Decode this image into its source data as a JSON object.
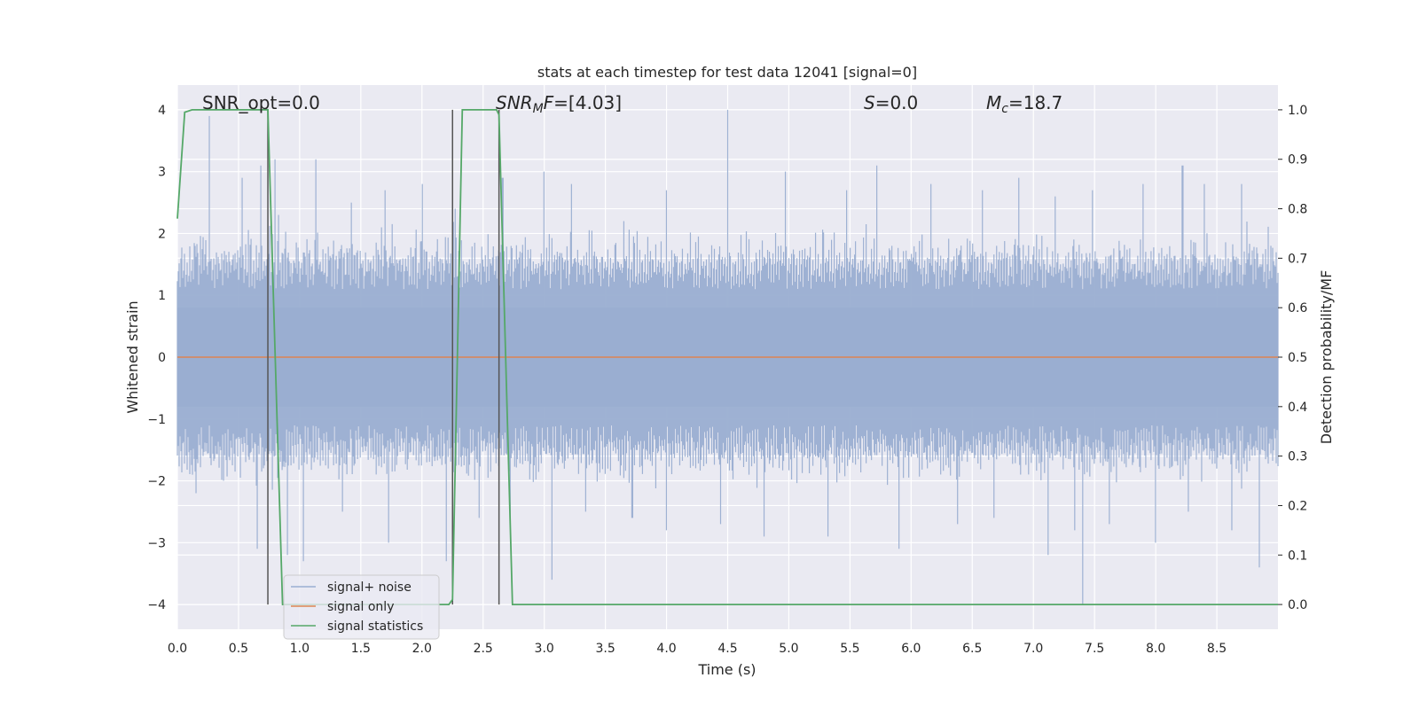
{
  "chart_data": {
    "type": "line",
    "title": "stats at each timestep for test data 12041 [signal=0]",
    "xlabel": "Time (s)",
    "ylabel_left": "Whitened strain",
    "ylabel_right": "Detection probability/MF",
    "xlim": [
      0.0,
      9.0
    ],
    "ylim_left": [
      -4.4,
      4.4
    ],
    "ylim_right": [
      -0.05,
      1.05
    ],
    "grid": true,
    "legend_position": "lower-left",
    "xticks": [
      "0.0",
      "0.5",
      "1.0",
      "1.5",
      "2.0",
      "2.5",
      "3.0",
      "3.5",
      "4.0",
      "4.5",
      "5.0",
      "5.5",
      "6.0",
      "6.5",
      "7.0",
      "7.5",
      "8.0",
      "8.5"
    ],
    "yticks_left": [
      "−4",
      "−3",
      "−2",
      "−1",
      "0",
      "1",
      "2",
      "3",
      "4"
    ],
    "yticks_right": [
      "0.0",
      "0.1",
      "0.2",
      "0.3",
      "0.4",
      "0.5",
      "0.6",
      "0.7",
      "0.8",
      "0.9",
      "1.0"
    ],
    "annotations": {
      "snr_opt": "SNR_opt=0.0",
      "snr_mf_sym": "SNR",
      "snr_mf_sub": "M",
      "snr_mf_sym2": "F",
      "snr_mf_val": "=[4.03]",
      "s_sym": "S",
      "s_val": "=0.0",
      "mc_sym": "M",
      "mc_sub": "c",
      "mc_val": "=18.7"
    },
    "vlines": [
      0.74,
      2.25,
      2.63
    ],
    "vline_ylim": [
      -4.0,
      4.0
    ],
    "series": [
      {
        "name": "signal+ noise",
        "color": "#9aaed1",
        "axis": "left",
        "sample_rate_hz": 4096,
        "envelope_levels": [
          1.1,
          1.3,
          1.5
        ],
        "spikes": [
          [
            0.26,
            3.9
          ],
          [
            0.53,
            2.9
          ],
          [
            0.68,
            3.1
          ],
          [
            0.8,
            3.2
          ],
          [
            0.83,
            2.3
          ],
          [
            1.13,
            3.2
          ],
          [
            1.42,
            2.5
          ],
          [
            1.7,
            2.7
          ],
          [
            2.0,
            2.8
          ],
          [
            2.27,
            2.4
          ],
          [
            2.66,
            2.9
          ],
          [
            3.0,
            3.0
          ],
          [
            3.22,
            2.8
          ],
          [
            3.65,
            2.2
          ],
          [
            4.0,
            2.7
          ],
          [
            4.5,
            4.0
          ],
          [
            4.97,
            3.0
          ],
          [
            5.47,
            2.7
          ],
          [
            5.72,
            3.1
          ],
          [
            6.16,
            2.8
          ],
          [
            6.58,
            2.7
          ],
          [
            6.88,
            2.9
          ],
          [
            7.18,
            2.6
          ],
          [
            7.48,
            2.7
          ],
          [
            7.9,
            2.8
          ],
          [
            8.22,
            3.1
          ],
          [
            8.4,
            2.8
          ],
          [
            8.7,
            2.8
          ],
          [
            8.94,
            1.8
          ]
        ],
        "neg_spikes": [
          [
            0.15,
            -2.2
          ],
          [
            0.38,
            -2.0
          ],
          [
            0.65,
            -3.1
          ],
          [
            0.9,
            -3.2
          ],
          [
            1.03,
            -3.3
          ],
          [
            1.35,
            -2.5
          ],
          [
            1.73,
            -3.0
          ],
          [
            2.2,
            -3.3
          ],
          [
            2.47,
            -2.6
          ],
          [
            2.72,
            -2.6
          ],
          [
            3.06,
            -3.6
          ],
          [
            3.34,
            -2.5
          ],
          [
            3.72,
            -2.6
          ],
          [
            4.0,
            -2.8
          ],
          [
            4.44,
            -2.7
          ],
          [
            4.8,
            -2.9
          ],
          [
            5.32,
            -2.9
          ],
          [
            5.9,
            -3.1
          ],
          [
            6.38,
            -2.7
          ],
          [
            6.68,
            -2.6
          ],
          [
            7.12,
            -3.2
          ],
          [
            7.34,
            -2.8
          ],
          [
            7.4,
            -4.0
          ],
          [
            7.62,
            -2.7
          ],
          [
            8.0,
            -3.0
          ],
          [
            8.27,
            -2.5
          ],
          [
            8.62,
            -2.8
          ],
          [
            8.85,
            -3.4
          ]
        ]
      },
      {
        "name": "signal only",
        "color": "#dd8452",
        "axis": "left",
        "x": [
          0.0,
          9.0
        ],
        "y": [
          0.0,
          0.0
        ]
      },
      {
        "name": "signal statistics",
        "color": "#55a868",
        "axis": "right",
        "x": [
          0.0,
          0.06,
          0.12,
          0.73,
          0.74,
          0.86,
          2.13,
          2.22,
          2.25,
          2.33,
          2.61,
          2.63,
          2.74,
          2.8,
          9.0
        ],
        "y": [
          0.78,
          0.995,
          1.0,
          1.0,
          1.0,
          0.0,
          0.0,
          0.0,
          0.01,
          1.0,
          1.0,
          0.99,
          0.0,
          0.0,
          0.0
        ]
      }
    ]
  }
}
